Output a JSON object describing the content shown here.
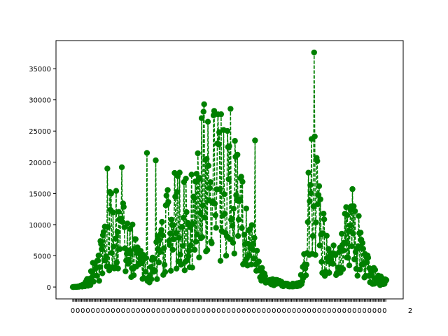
{
  "chart_data": {
    "type": "line",
    "title": "",
    "xlabel": "",
    "ylabel": "",
    "line_style": "dashed",
    "marker": "circle",
    "color": "#008000",
    "x_tick_labels_note": "Overlapping dense date/category tick labels along the x-axis, unreadable",
    "ylim": [
      -1900,
      39500
    ],
    "yticks": [
      0,
      5000,
      10000,
      15000,
      20000,
      25000,
      30000,
      35000
    ],
    "ytick_labels": [
      "0",
      "5000",
      "10000",
      "15000",
      "20000",
      "25000",
      "30000",
      "35000"
    ],
    "n_points": 500,
    "anchors": [
      [
        0,
        0
      ],
      [
        8,
        50
      ],
      [
        15,
        200
      ],
      [
        25,
        1000
      ],
      [
        35,
        2500
      ],
      [
        45,
        4500
      ],
      [
        55,
        7000
      ],
      [
        62,
        9000
      ],
      [
        70,
        9500
      ],
      [
        78,
        8500
      ],
      [
        88,
        6500
      ],
      [
        100,
        4500
      ],
      [
        112,
        3000
      ],
      [
        122,
        2500
      ],
      [
        130,
        3500
      ],
      [
        140,
        6000
      ],
      [
        150,
        8000
      ],
      [
        160,
        10500
      ],
      [
        170,
        11500
      ],
      [
        180,
        10000
      ],
      [
        190,
        10500
      ],
      [
        200,
        13000
      ],
      [
        210,
        16000
      ],
      [
        220,
        17500
      ],
      [
        230,
        16000
      ],
      [
        240,
        17000
      ],
      [
        250,
        16000
      ],
      [
        260,
        13000
      ],
      [
        270,
        10000
      ],
      [
        280,
        7000
      ],
      [
        290,
        4000
      ],
      [
        298,
        2000
      ],
      [
        310,
        800
      ],
      [
        330,
        600
      ],
      [
        345,
        400
      ],
      [
        355,
        300
      ],
      [
        362,
        800
      ],
      [
        368,
        3000
      ],
      [
        372,
        6000
      ],
      [
        376,
        11000
      ],
      [
        381,
        14000
      ],
      [
        386,
        13000
      ],
      [
        392,
        10000
      ],
      [
        400,
        7000
      ],
      [
        410,
        4500
      ],
      [
        418,
        3000
      ],
      [
        425,
        3500
      ],
      [
        432,
        6000
      ],
      [
        440,
        8500
      ],
      [
        448,
        8000
      ],
      [
        456,
        6000
      ],
      [
        465,
        3500
      ],
      [
        475,
        2000
      ],
      [
        485,
        1200
      ],
      [
        492,
        900
      ],
      [
        499,
        700
      ]
    ],
    "spikes": [
      [
        55,
        19000
      ],
      [
        78,
        19200
      ],
      [
        118,
        21500
      ],
      [
        132,
        20300
      ],
      [
        215,
        26500
      ],
      [
        230,
        23000
      ],
      [
        236,
        27700
      ],
      [
        290,
        23500
      ],
      [
        384,
        37600
      ],
      [
        388,
        20700
      ],
      [
        445,
        15700
      ]
    ]
  }
}
